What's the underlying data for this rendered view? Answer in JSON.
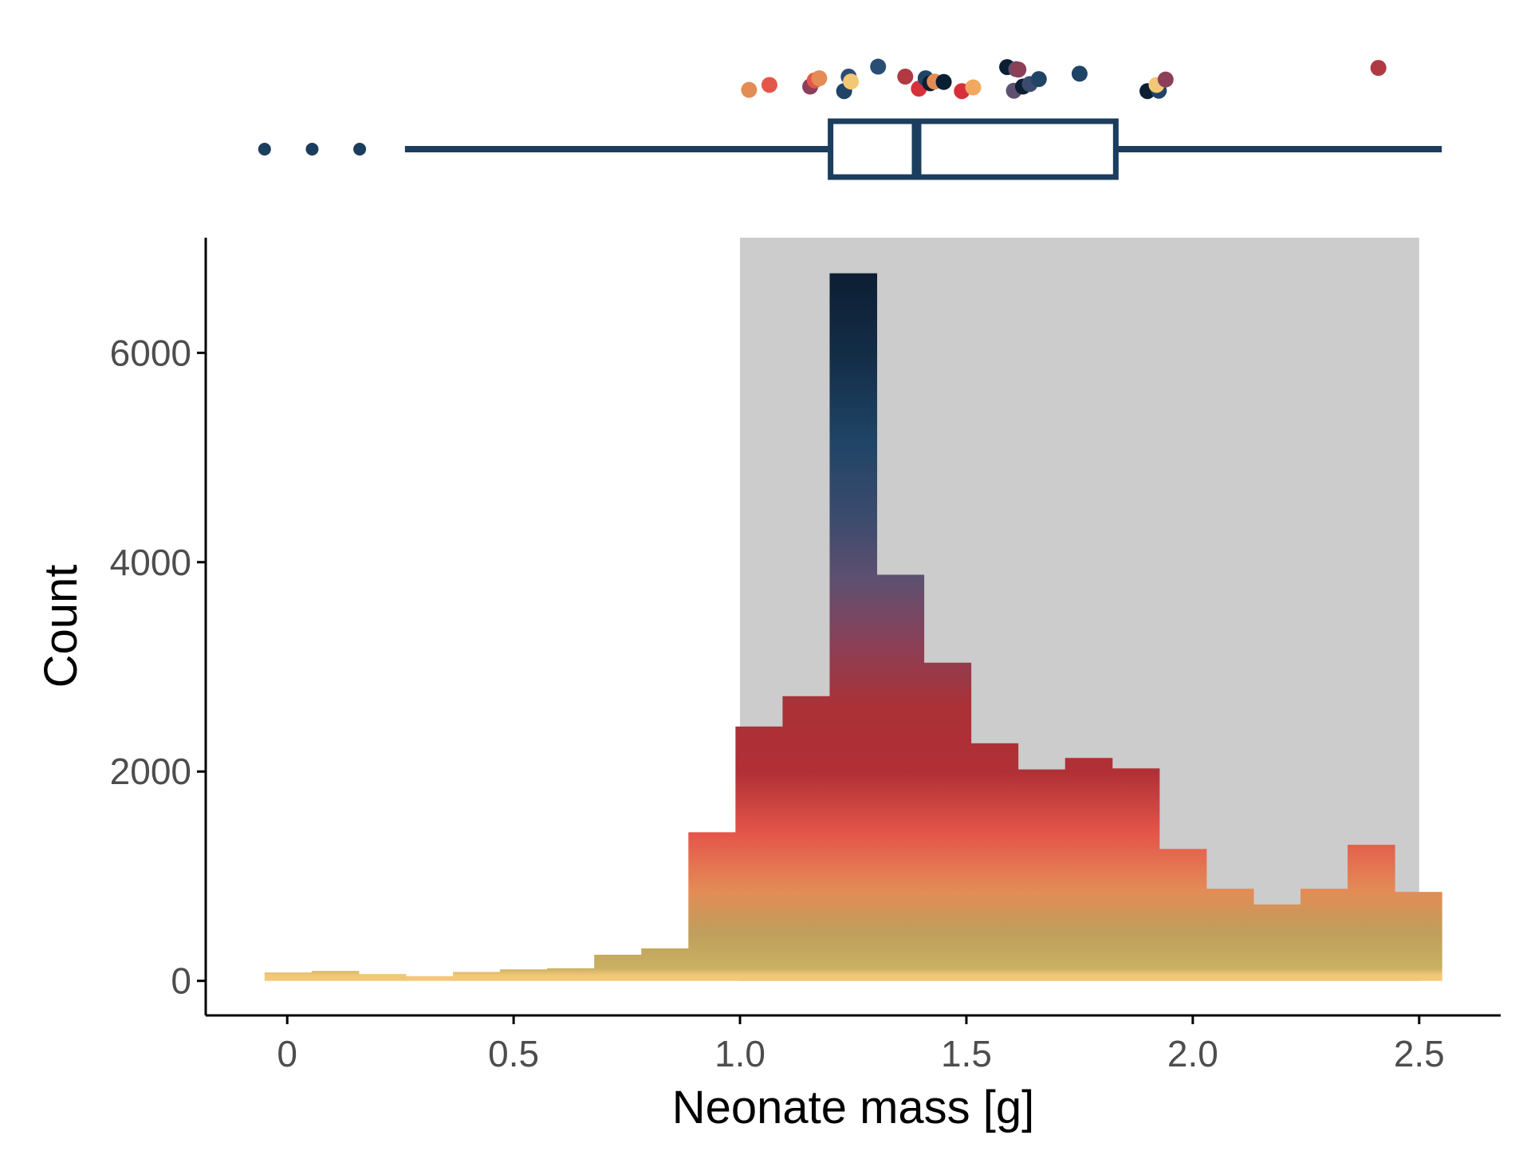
{
  "colors": {
    "axis": "#000000",
    "box": "#1b3d5e",
    "shade": "#cccccc",
    "palette": [
      "#f2c877",
      "#c9b062",
      "#e38c56",
      "#e5564a",
      "#ab3136",
      "#8c3f57",
      "#5f5070",
      "#3b4b6e",
      "#1f4466",
      "#132d47",
      "#0c1e32"
    ]
  },
  "chart_data": [
    {
      "type": "histogram",
      "x_label": "Neonate mass [g]",
      "y_label": "Count",
      "x_lim": [
        -0.18,
        2.68
      ],
      "y_lim": [
        -330,
        7100
      ],
      "x_ticks": [
        {
          "value": 0,
          "label": "0"
        },
        {
          "value": 0.5,
          "label": "0.5"
        },
        {
          "value": 1.0,
          "label": "1.0"
        },
        {
          "value": 1.5,
          "label": "1.5"
        },
        {
          "value": 2.0,
          "label": "2.0"
        },
        {
          "value": 2.5,
          "label": "2.5"
        }
      ],
      "y_ticks": [
        {
          "value": 0,
          "label": "0"
        },
        {
          "value": 2000,
          "label": "2000"
        },
        {
          "value": 4000,
          "label": "4000"
        },
        {
          "value": 6000,
          "label": "6000"
        }
      ],
      "shaded_range": [
        1.0,
        2.5
      ],
      "bin_width": 0.104,
      "bins": [
        {
          "x0": -0.05,
          "count": 80
        },
        {
          "x0": 0.054,
          "count": 95
        },
        {
          "x0": 0.158,
          "count": 65
        },
        {
          "x0": 0.262,
          "count": 45
        },
        {
          "x0": 0.366,
          "count": 85
        },
        {
          "x0": 0.47,
          "count": 110
        },
        {
          "x0": 0.574,
          "count": 120
        },
        {
          "x0": 0.678,
          "count": 250
        },
        {
          "x0": 0.782,
          "count": 310
        },
        {
          "x0": 0.886,
          "count": 1420
        },
        {
          "x0": 0.99,
          "count": 2430
        },
        {
          "x0": 1.094,
          "count": 2720
        },
        {
          "x0": 1.198,
          "count": 6760
        },
        {
          "x0": 1.302,
          "count": 3880
        },
        {
          "x0": 1.406,
          "count": 3040
        },
        {
          "x0": 1.51,
          "count": 2270
        },
        {
          "x0": 1.614,
          "count": 2020
        },
        {
          "x0": 1.718,
          "count": 2130
        },
        {
          "x0": 1.822,
          "count": 2030
        },
        {
          "x0": 1.926,
          "count": 1260
        },
        {
          "x0": 2.03,
          "count": 880
        },
        {
          "x0": 2.134,
          "count": 730
        },
        {
          "x0": 2.238,
          "count": 880
        },
        {
          "x0": 2.342,
          "count": 1300
        },
        {
          "x0": 2.446,
          "count": 850
        }
      ]
    },
    {
      "type": "boxplot",
      "whisker_low": 0.26,
      "q1": 1.2,
      "median": 1.39,
      "q3": 1.83,
      "whisker_high": 2.55,
      "outliers": [
        -0.05,
        0.055,
        0.16
      ]
    },
    {
      "type": "scatter",
      "points": [
        {
          "x": 1.02,
          "level": 1.6,
          "color": "#e38c56"
        },
        {
          "x": 1.065,
          "level": 2.8,
          "color": "#e5564a"
        },
        {
          "x": 1.155,
          "level": 2.4,
          "color": "#8c3f57"
        },
        {
          "x": 1.165,
          "level": 3.9,
          "color": "#e5564a"
        },
        {
          "x": 1.175,
          "level": 4.4,
          "color": "#e38c56"
        },
        {
          "x": 1.23,
          "level": 1.3,
          "color": "#1f4466"
        },
        {
          "x": 1.24,
          "level": 4.8,
          "color": "#2a4d73"
        },
        {
          "x": 1.245,
          "level": 3.6,
          "color": "#f2c877"
        },
        {
          "x": 1.305,
          "level": 7.2,
          "color": "#2a4d73"
        },
        {
          "x": 1.365,
          "level": 4.8,
          "color": "#b03942"
        },
        {
          "x": 1.395,
          "level": 1.9,
          "color": "#d7303a"
        },
        {
          "x": 1.41,
          "level": 4.4,
          "color": "#1f4466"
        },
        {
          "x": 1.42,
          "level": 3.2,
          "color": "#0c1e32"
        },
        {
          "x": 1.43,
          "level": 3.6,
          "color": "#e38c56"
        },
        {
          "x": 1.45,
          "level": 3.5,
          "color": "#0c1e32"
        },
        {
          "x": 1.49,
          "level": 1.3,
          "color": "#d7303a"
        },
        {
          "x": 1.515,
          "level": 2.2,
          "color": "#f2a85e"
        },
        {
          "x": 1.59,
          "level": 7.1,
          "color": "#0c1e32"
        },
        {
          "x": 1.605,
          "level": 1.4,
          "color": "#5f5070"
        },
        {
          "x": 1.61,
          "level": 6.6,
          "color": "#5f5070"
        },
        {
          "x": 1.615,
          "level": 6.5,
          "color": "#8c3f57"
        },
        {
          "x": 1.625,
          "level": 2.4,
          "color": "#0c1e32"
        },
        {
          "x": 1.64,
          "level": 3.0,
          "color": "#3b4b6e"
        },
        {
          "x": 1.66,
          "level": 4.2,
          "color": "#1f4466"
        },
        {
          "x": 1.75,
          "level": 5.5,
          "color": "#1f4466"
        },
        {
          "x": 1.9,
          "level": 1.3,
          "color": "#0c1e32"
        },
        {
          "x": 1.925,
          "level": 1.4,
          "color": "#1f4466"
        },
        {
          "x": 1.92,
          "level": 2.8,
          "color": "#f2c877"
        },
        {
          "x": 1.94,
          "level": 4.1,
          "color": "#8c3f57"
        },
        {
          "x": 2.41,
          "level": 6.9,
          "color": "#b03942"
        }
      ]
    }
  ]
}
